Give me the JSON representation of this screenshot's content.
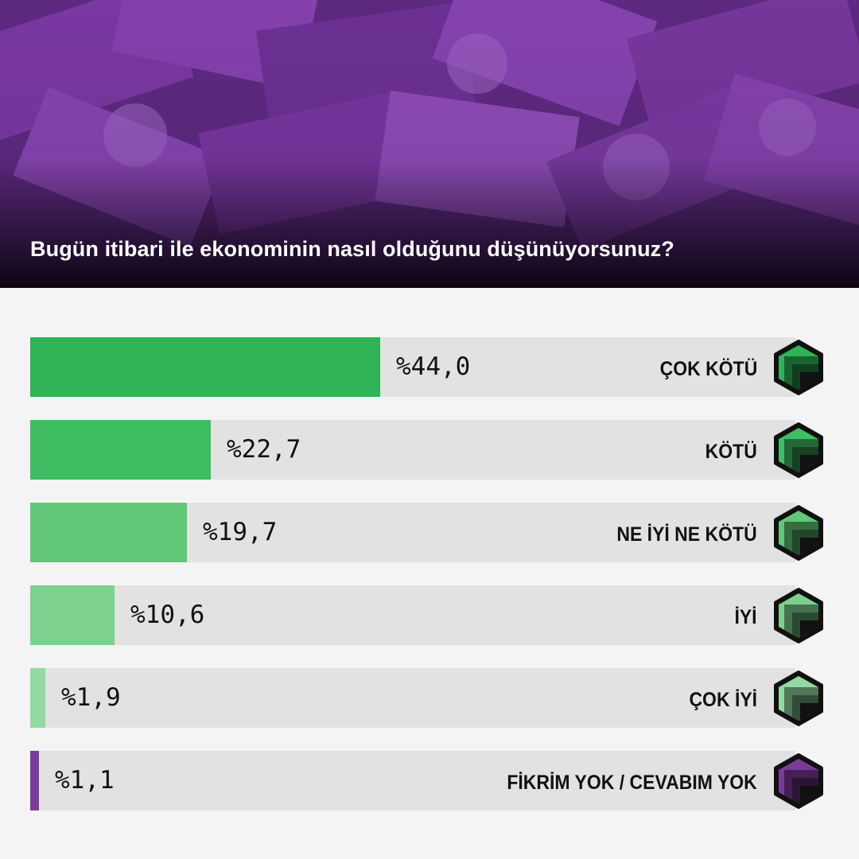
{
  "header": {
    "question": "Bugün itibari ile ekonominin nasıl olduğunu düşünüyorsunuz?",
    "background_tint": "#6b2f90"
  },
  "chart_data": {
    "type": "bar",
    "orientation": "horizontal",
    "unit": "%",
    "xlim": [
      0,
      100
    ],
    "categories": [
      "ÇOK KÖTÜ",
      "KÖTÜ",
      "NE İYİ NE KÖTÜ",
      "İYİ",
      "ÇOK İYİ",
      "FİKRİM YOK / CEVABIM YOK"
    ],
    "values": [
      44.0,
      22.7,
      19.7,
      10.6,
      1.9,
      1.1
    ],
    "value_labels": [
      "%44,0",
      "%22,7",
      "%19,7",
      "%10,6",
      "%1,9",
      "%1,1"
    ],
    "colors": [
      "#2fb457",
      "#3fbd62",
      "#62c777",
      "#7cd18d",
      "#93d9a2",
      "#7b3b98"
    ],
    "track_color": "#e2e2e2"
  }
}
